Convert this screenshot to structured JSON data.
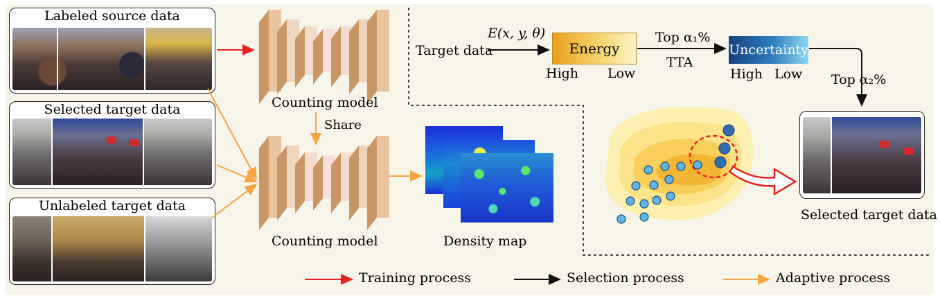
{
  "labels": {
    "labeled_source": "Labeled source data",
    "selected_target": "Selected target data",
    "unlabeled_target": "Unlabeled target data",
    "counting_model_top": "Counting model",
    "counting_model_bottom": "Counting model",
    "share": "Share",
    "density_map": "Density map",
    "target_data": "Target data",
    "energy_fn": "E(x, y, θ)",
    "energy": "Energy",
    "energy_high": "High",
    "energy_low": "Low",
    "top_alpha1": "Top α₁%",
    "tta": "TTA",
    "uncertainty": "Uncertainty",
    "unc_high": "High",
    "unc_low": "Low",
    "top_alpha2": "Top α₂%",
    "selected_target_right": "Selected target data"
  },
  "legend": {
    "training": "Training process",
    "selection": "Selection process",
    "adaptive": "Adaptive process"
  },
  "colors": {
    "training": "#e8231f",
    "selection": "#111111",
    "adaptive": "#f5a544",
    "model_block": "#ecc9a3",
    "panel": "#f7f4ea"
  },
  "icons": [
    "crowd-photo",
    "density-heatmap",
    "cnn-layer",
    "energy-contour"
  ]
}
